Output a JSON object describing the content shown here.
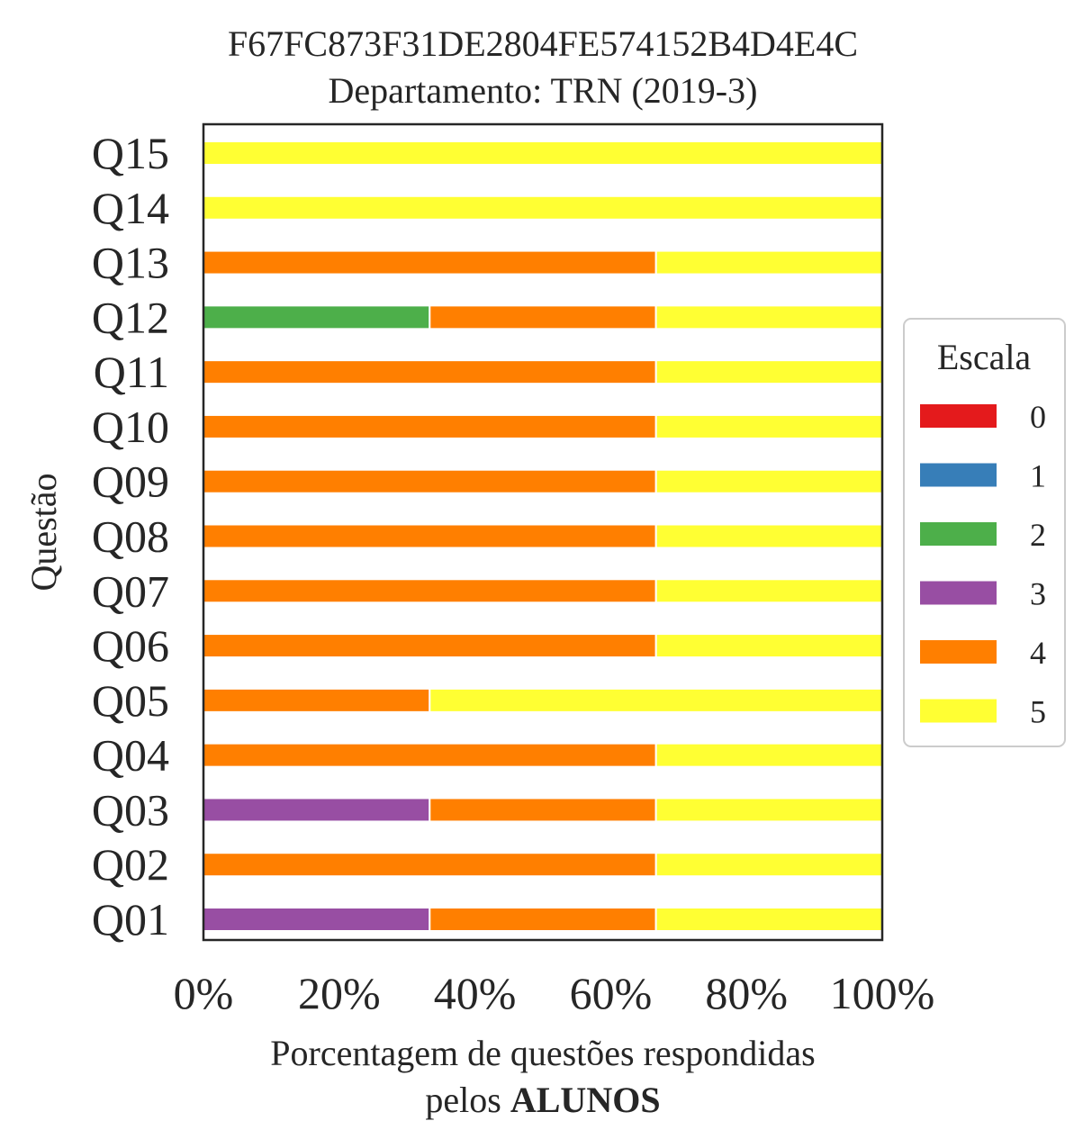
{
  "chart_data": {
    "type": "bar",
    "orientation": "horizontal",
    "stacked": true,
    "title": "F67FC873F31DE2804FE574152B4D4E4C",
    "subtitle": "Departamento: TRN (2019-3)",
    "xlabel_prefix": "Porcentagem de questões respondidas",
    "xlabel_line2_normal": "pelos ",
    "xlabel_line2_bold": "ALUNOS",
    "ylabel": "Questão",
    "xlim": [
      0,
      100
    ],
    "x_ticks": [
      "0%",
      "20%",
      "40%",
      "60%",
      "80%",
      "100%"
    ],
    "categories": [
      "Q01",
      "Q02",
      "Q03",
      "Q04",
      "Q05",
      "Q06",
      "Q07",
      "Q08",
      "Q09",
      "Q10",
      "Q11",
      "Q12",
      "Q13",
      "Q14",
      "Q15"
    ],
    "legend": {
      "title": "Escala",
      "placement": "right"
    },
    "series": [
      {
        "name": "0",
        "color": "#e41a1c",
        "values": [
          0,
          0,
          0,
          0,
          0,
          0,
          0,
          0,
          0,
          0,
          0,
          0,
          0,
          0,
          0
        ]
      },
      {
        "name": "1",
        "color": "#377eb8",
        "values": [
          0,
          0,
          0,
          0,
          0,
          0,
          0,
          0,
          0,
          0,
          0,
          0,
          0,
          0,
          0
        ]
      },
      {
        "name": "2",
        "color": "#4daf4a",
        "values": [
          0,
          0,
          0,
          0,
          0,
          0,
          0,
          0,
          0,
          0,
          0,
          33.33,
          0,
          0,
          0
        ]
      },
      {
        "name": "3",
        "color": "#984ea3",
        "values": [
          33.33,
          0,
          33.33,
          0,
          0,
          0,
          0,
          0,
          0,
          0,
          0,
          0,
          0,
          0,
          0
        ]
      },
      {
        "name": "4",
        "color": "#ff7f00",
        "values": [
          33.33,
          66.67,
          33.33,
          66.67,
          33.33,
          66.67,
          66.67,
          66.67,
          66.67,
          66.67,
          66.67,
          33.33,
          66.67,
          0,
          0
        ]
      },
      {
        "name": "5",
        "color": "#ffff33",
        "values": [
          33.34,
          33.33,
          33.34,
          33.33,
          66.67,
          33.33,
          33.33,
          33.33,
          33.33,
          33.33,
          33.33,
          33.34,
          33.33,
          100,
          100
        ]
      }
    ]
  }
}
